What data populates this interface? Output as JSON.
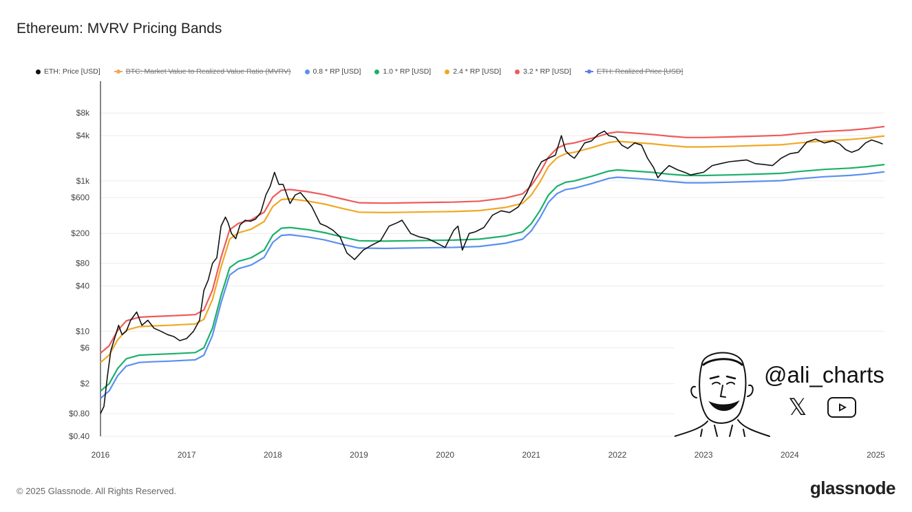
{
  "header": {
    "title": "Ethereum: MVRV Pricing Bands"
  },
  "legend": [
    {
      "label": "ETH: Price [USD]",
      "color": "#111111",
      "hidden": false
    },
    {
      "label": "BTC: Market Value to Realized Value Ratio (MVRV)",
      "color": "#f2a65a",
      "hidden": true
    },
    {
      "label": "0.8 * RP [USD]",
      "color": "#5b8ff0",
      "hidden": false
    },
    {
      "label": "1.0 * RP [USD]",
      "color": "#1ab06a",
      "hidden": false
    },
    {
      "label": "2.4 * RP [USD]",
      "color": "#f0a824",
      "hidden": false
    },
    {
      "label": "3.2 * RP [USD]",
      "color": "#ef5a5a",
      "hidden": false
    },
    {
      "label": "ETH: Realized Price [USD]",
      "color": "#5b7ee8",
      "hidden": true
    }
  ],
  "footer": {
    "copyright": "© 2025 Glassnode. All Rights Reserved.",
    "brand": "glassnode"
  },
  "watermark": {
    "handle": "@ali_charts",
    "icons": [
      "x-icon",
      "youtube-icon"
    ]
  },
  "chart_data": {
    "type": "line",
    "y_scale": "log",
    "ylim": [
      0.4,
      12000
    ],
    "xlim": [
      2016.0,
      2025.1
    ],
    "y_ticks": [
      {
        "label": "$8k",
        "value": 8000
      },
      {
        "label": "$4k",
        "value": 4000
      },
      {
        "label": "$1k",
        "value": 1000
      },
      {
        "label": "$600",
        "value": 600
      },
      {
        "label": "$200",
        "value": 200
      },
      {
        "label": "$80",
        "value": 80
      },
      {
        "label": "$40",
        "value": 40
      },
      {
        "label": "$10",
        "value": 10
      },
      {
        "label": "$6",
        "value": 6
      },
      {
        "label": "$2",
        "value": 2
      },
      {
        "label": "$0.80",
        "value": 0.8
      },
      {
        "label": "$0.40",
        "value": 0.4
      }
    ],
    "x_ticks": [
      {
        "label": "2016",
        "value": 2016
      },
      {
        "label": "2017",
        "value": 2017
      },
      {
        "label": "2018",
        "value": 2018
      },
      {
        "label": "2019",
        "value": 2019
      },
      {
        "label": "2020",
        "value": 2020
      },
      {
        "label": "2021",
        "value": 2021
      },
      {
        "label": "2022",
        "value": 2022
      },
      {
        "label": "2023",
        "value": 2023
      },
      {
        "label": "2024",
        "value": 2024
      },
      {
        "label": "2025",
        "value": 2025
      }
    ],
    "grid": true,
    "legend_position": "top",
    "realized_price": {
      "x": [
        2016.0,
        2016.1,
        2016.2,
        2016.3,
        2016.45,
        2016.6,
        2016.8,
        2016.95,
        2017.1,
        2017.2,
        2017.3,
        2017.4,
        2017.5,
        2017.6,
        2017.75,
        2017.9,
        2018.0,
        2018.1,
        2018.2,
        2018.4,
        2018.6,
        2018.8,
        2019.0,
        2019.3,
        2019.6,
        2019.9,
        2020.1,
        2020.4,
        2020.7,
        2020.9,
        2021.0,
        2021.1,
        2021.2,
        2021.3,
        2021.4,
        2021.5,
        2021.7,
        2021.9,
        2022.0,
        2022.2,
        2022.4,
        2022.6,
        2022.8,
        2023.0,
        2023.3,
        2023.6,
        2023.9,
        2024.1,
        2024.4,
        2024.7,
        2024.9,
        2025.1
      ],
      "values": [
        1.6,
        2.0,
        3.2,
        4.3,
        4.8,
        4.9,
        5.0,
        5.1,
        5.2,
        6.0,
        11,
        30,
        70,
        85,
        95,
        120,
        190,
        235,
        240,
        225,
        205,
        180,
        160,
        158,
        160,
        162,
        163,
        168,
        185,
        210,
        270,
        400,
        650,
        850,
        960,
        1000,
        1150,
        1350,
        1400,
        1350,
        1300,
        1230,
        1180,
        1180,
        1200,
        1230,
        1260,
        1330,
        1420,
        1480,
        1550,
        1650
      ]
    },
    "series": [
      {
        "name": "0.8 * RP [USD]",
        "multiplier": 0.8,
        "color": "#5b8ff0"
      },
      {
        "name": "1.0 * RP [USD]",
        "multiplier": 1.0,
        "color": "#1ab06a"
      },
      {
        "name": "2.4 * RP [USD]",
        "multiplier": 2.4,
        "color": "#f0a824"
      },
      {
        "name": "3.2 * RP [USD]",
        "multiplier": 3.2,
        "color": "#ef5a5a"
      },
      {
        "name": "ETH: Price [USD]",
        "color": "#111111",
        "x": [
          2016.0,
          2016.04,
          2016.08,
          2016.12,
          2016.17,
          2016.21,
          2016.25,
          2016.3,
          2016.35,
          2016.42,
          2016.48,
          2016.55,
          2016.62,
          2016.7,
          2016.78,
          2016.85,
          2016.92,
          2017.0,
          2017.08,
          2017.15,
          2017.2,
          2017.25,
          2017.3,
          2017.35,
          2017.4,
          2017.45,
          2017.48,
          2017.52,
          2017.57,
          2017.62,
          2017.68,
          2017.74,
          2017.8,
          2017.86,
          2017.92,
          2017.97,
          2018.02,
          2018.07,
          2018.12,
          2018.2,
          2018.26,
          2018.32,
          2018.38,
          2018.45,
          2018.55,
          2018.62,
          2018.7,
          2018.78,
          2018.86,
          2018.95,
          2019.05,
          2019.15,
          2019.25,
          2019.35,
          2019.45,
          2019.5,
          2019.6,
          2019.7,
          2019.8,
          2019.9,
          2020.0,
          2020.1,
          2020.15,
          2020.2,
          2020.28,
          2020.35,
          2020.45,
          2020.55,
          2020.65,
          2020.75,
          2020.85,
          2020.95,
          2021.05,
          2021.12,
          2021.2,
          2021.28,
          2021.35,
          2021.4,
          2021.45,
          2021.5,
          2021.55,
          2021.62,
          2021.7,
          2021.78,
          2021.85,
          2021.9,
          2021.98,
          2022.05,
          2022.12,
          2022.2,
          2022.28,
          2022.35,
          2022.42,
          2022.47,
          2022.52,
          2022.6,
          2022.7,
          2022.78,
          2022.85,
          2022.92,
          2023.0,
          2023.1,
          2023.2,
          2023.3,
          2023.4,
          2023.5,
          2023.6,
          2023.7,
          2023.8,
          2023.9,
          2024.0,
          2024.1,
          2024.2,
          2024.3,
          2024.4,
          2024.5,
          2024.58,
          2024.65,
          2024.72,
          2024.8,
          2024.88,
          2024.95,
          2025.02,
          2025.08
        ],
        "values": [
          0.8,
          1.0,
          2.5,
          5.5,
          8.5,
          12,
          9,
          10,
          14,
          18,
          12,
          14,
          11,
          10,
          9,
          8.5,
          7.5,
          8,
          10,
          14,
          35,
          48,
          80,
          95,
          250,
          330,
          280,
          200,
          170,
          260,
          300,
          290,
          310,
          380,
          650,
          850,
          1300,
          900,
          900,
          500,
          650,
          700,
          580,
          460,
          270,
          250,
          220,
          180,
          110,
          90,
          120,
          140,
          160,
          250,
          280,
          300,
          200,
          180,
          170,
          150,
          130,
          220,
          250,
          120,
          200,
          210,
          240,
          350,
          400,
          380,
          450,
          700,
          1300,
          1800,
          2000,
          2200,
          4000,
          2500,
          2200,
          2000,
          2400,
          3200,
          3400,
          4200,
          4600,
          4000,
          3800,
          3000,
          2700,
          3200,
          3000,
          2000,
          1500,
          1100,
          1300,
          1600,
          1400,
          1300,
          1200,
          1250,
          1300,
          1600,
          1700,
          1800,
          1850,
          1900,
          1700,
          1650,
          1600,
          2000,
          2300,
          2400,
          3300,
          3600,
          3200,
          3400,
          3100,
          2600,
          2400,
          2600,
          3200,
          3500,
          3300,
          3100
        ]
      }
    ]
  }
}
